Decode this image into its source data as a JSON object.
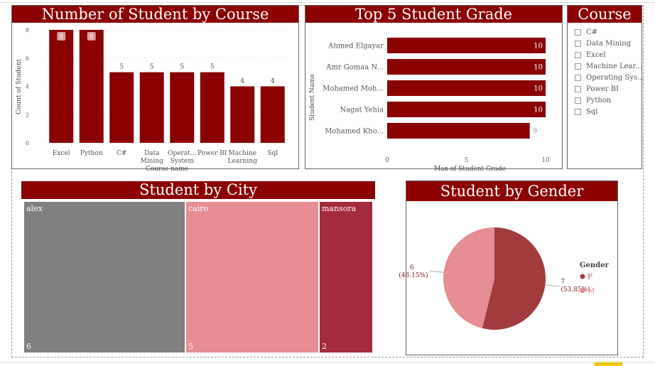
{
  "colors": {
    "accent": "#8b0000",
    "pie_f": "#a33b3e",
    "pie_m": "#e68e93",
    "city_alex": "#808080",
    "city_cairo": "#e68e93",
    "city_mansora": "#a52a3c"
  },
  "course_chart": {
    "title": "Number of Student by Course"
  },
  "grade_chart": {
    "title": "Top 5 Student Grade"
  },
  "slicer": {
    "title": "Course",
    "items": [
      "C#",
      "Data Mining",
      "Excel",
      "Machine Lear...",
      "Operating Sys...",
      "Power BI",
      "Python",
      "Sql"
    ]
  },
  "city_chart": {
    "title": "Student by City"
  },
  "gender_chart": {
    "title": "Student by Gender",
    "legend_title": "Gender"
  },
  "chart_data": [
    {
      "type": "bar",
      "title": "Number of Student by Course",
      "xlabel": "Course name",
      "ylabel": "Count of Student",
      "categories": [
        "Excel",
        "Python",
        "C#",
        "Data Mining",
        "Operat... System",
        "Power BI",
        "Machine Learning",
        "Sql"
      ],
      "values": [
        8,
        8,
        5,
        5,
        5,
        5,
        4,
        4
      ],
      "data_labels": [
        "8",
        "8",
        "5",
        "5",
        "5",
        "5",
        "4",
        "4"
      ],
      "yticks": [
        "0",
        "2",
        "4",
        "6",
        "8"
      ],
      "ylim": [
        0,
        8
      ]
    },
    {
      "type": "bar",
      "orientation": "horizontal",
      "title": "Top 5 Student Grade",
      "xlabel": "Max of Student Grade",
      "ylabel": "Student Name",
      "categories": [
        "Ahmed Elgayar",
        "Amr Gomaa N...",
        "Mohamed Moh...",
        "Nagat Yehia",
        "Mohamed Kho..."
      ],
      "values": [
        10,
        10,
        10,
        10,
        9
      ],
      "data_labels": [
        "10",
        "10",
        "10",
        "10",
        "9"
      ],
      "xticks": [
        "0",
        "5",
        "10"
      ],
      "xlim": [
        0,
        10
      ]
    },
    {
      "type": "treemap",
      "title": "Student by City",
      "categories": [
        "alex",
        "cairo",
        "mansora"
      ],
      "values": [
        6,
        5,
        2
      ],
      "data_labels": [
        "6",
        "5",
        "2"
      ]
    },
    {
      "type": "pie",
      "title": "Student by Gender",
      "legend": "right",
      "categories": [
        "F",
        "M"
      ],
      "values": [
        7,
        6
      ],
      "data_labels": [
        "7 (53.85%)",
        "6 (46.15%)"
      ],
      "label_lines": [
        [
          "7",
          "(53.85%)"
        ],
        [
          "6",
          "(46.15%)"
        ]
      ]
    }
  ]
}
